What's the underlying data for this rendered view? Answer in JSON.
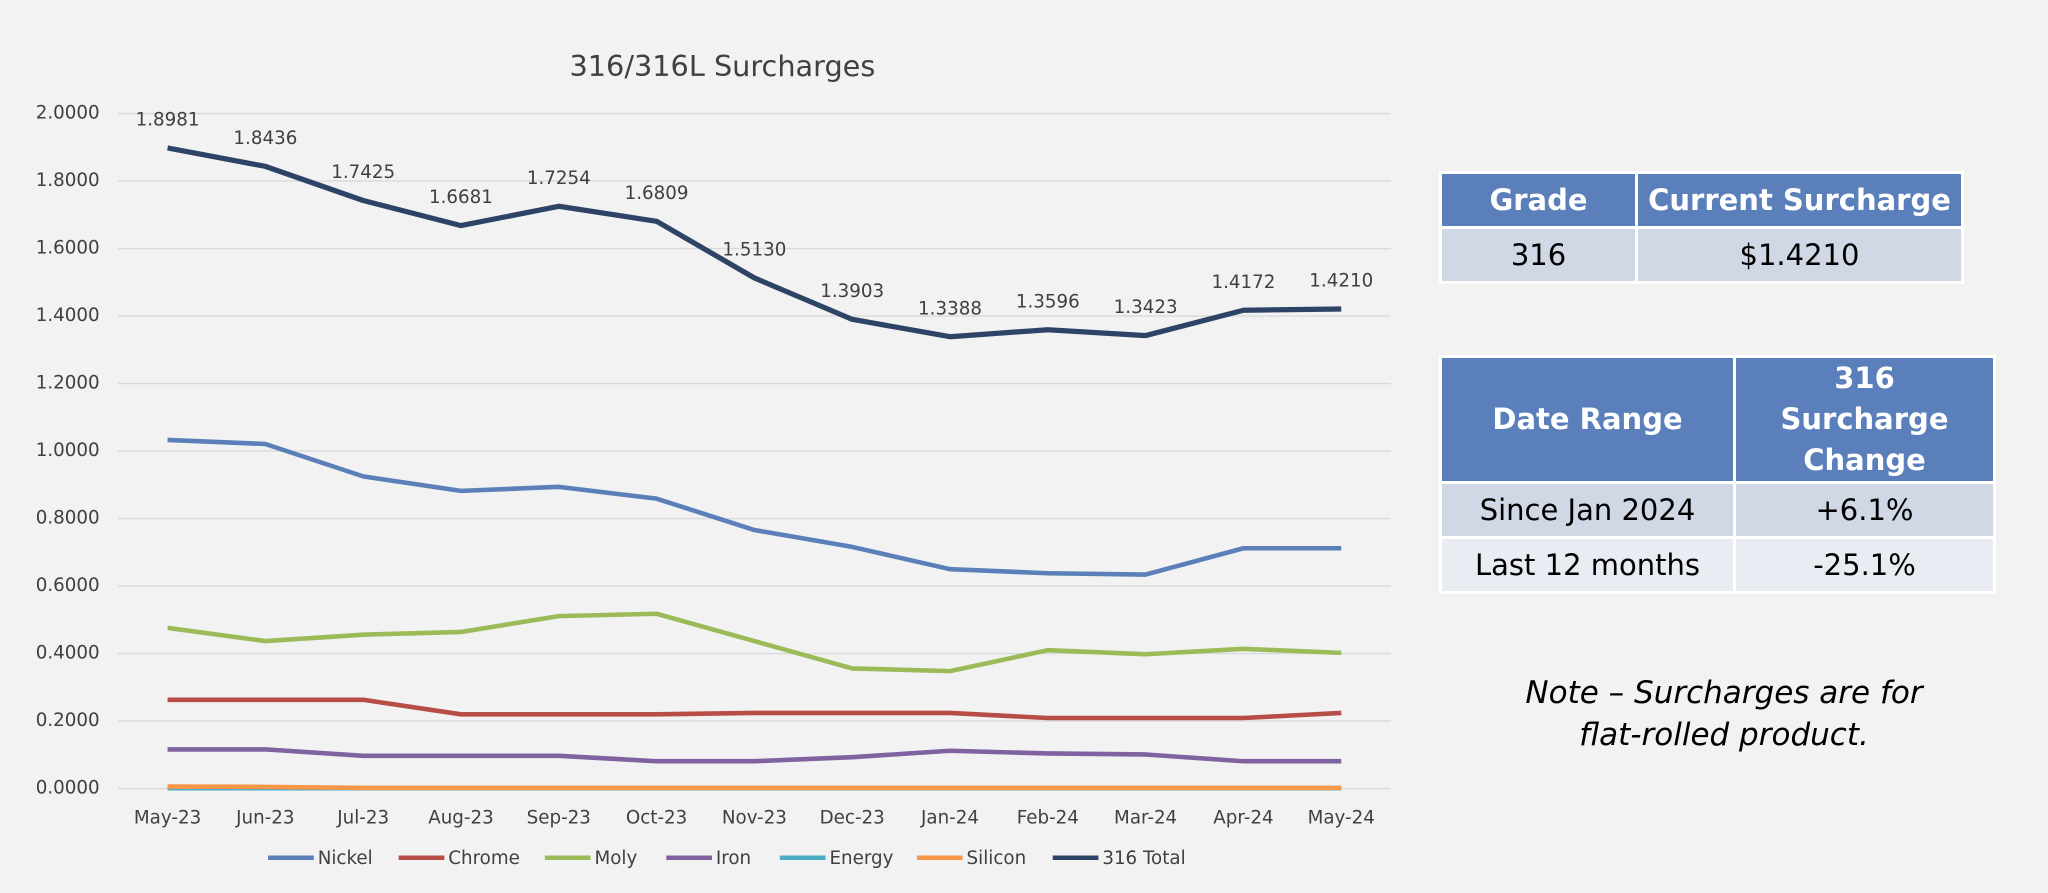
{
  "chart_data": {
    "type": "line",
    "title": "316/316L Surcharges",
    "categories": [
      "May-23",
      "Jun-23",
      "Jul-23",
      "Aug-23",
      "Sep-23",
      "Oct-23",
      "Nov-23",
      "Dec-23",
      "Jan-24",
      "Feb-24",
      "Mar-24",
      "Apr-24",
      "May-24"
    ],
    "series": [
      {
        "name": "Nickel",
        "color": "#5b80b9",
        "values": [
          1.033,
          1.021,
          0.925,
          0.882,
          0.894,
          0.859,
          0.766,
          0.716,
          0.65,
          0.638,
          0.634,
          0.712,
          0.712
        ]
      },
      {
        "name": "Chrome",
        "color": "#b84d48",
        "values": [
          0.263,
          0.263,
          0.263,
          0.22,
          0.22,
          0.22,
          0.224,
          0.224,
          0.224,
          0.209,
          0.209,
          0.209,
          0.224
        ]
      },
      {
        "name": "Moly",
        "color": "#9bbb59",
        "values": [
          0.476,
          0.437,
          0.456,
          0.464,
          0.511,
          0.518,
          0.437,
          0.356,
          0.348,
          0.41,
          0.398,
          0.414,
          0.402
        ]
      },
      {
        "name": "Iron",
        "color": "#7f62a0",
        "values": [
          0.116,
          0.116,
          0.097,
          0.097,
          0.097,
          0.081,
          0.081,
          0.093,
          0.112,
          0.104,
          0.101,
          0.081,
          0.081
        ]
      },
      {
        "name": "Energy",
        "color": "#4bacc6",
        "values": [
          0.001,
          0.001,
          0.001,
          0.001,
          0.001,
          0.001,
          0.001,
          0.001,
          0.001,
          0.001,
          0.001,
          0.001,
          0.001
        ]
      },
      {
        "name": "Silicon",
        "color": "#f79646",
        "values": [
          0.006,
          0.005,
          0.002,
          0.002,
          0.002,
          0.002,
          0.002,
          0.002,
          0.002,
          0.002,
          0.002,
          0.002,
          0.002
        ]
      },
      {
        "name": "316 Total",
        "color": "#2e4466",
        "values": [
          1.8981,
          1.8436,
          1.7425,
          1.6681,
          1.7254,
          1.6809,
          1.513,
          1.3903,
          1.3388,
          1.3596,
          1.3423,
          1.4172,
          1.421
        ],
        "value_labels": [
          "1.8981",
          "1.8436",
          "1.7425",
          "1.6681",
          "1.7254",
          "1.6809",
          "1.5130",
          "1.3903",
          "1.3388",
          "1.3596",
          "1.3423",
          "1.4172",
          "1.4210"
        ]
      }
    ],
    "ylim": [
      0,
      2
    ],
    "yticks": [
      {
        "value": 0,
        "label": "0.0000"
      },
      {
        "value": 0.2,
        "label": "0.2000"
      },
      {
        "value": 0.4,
        "label": "0.4000"
      },
      {
        "value": 0.6,
        "label": "0.6000"
      },
      {
        "value": 0.8,
        "label": "0.8000"
      },
      {
        "value": 1,
        "label": "1.0000"
      },
      {
        "value": 1.2,
        "label": "1.2000"
      },
      {
        "value": 1.4,
        "label": "1.4000"
      },
      {
        "value": 1.6,
        "label": "1.6000"
      },
      {
        "value": 1.8,
        "label": "1.8000"
      },
      {
        "value": 2,
        "label": "2.0000"
      }
    ],
    "grid": true,
    "legend": "bottom"
  },
  "tables": [
    {
      "header": [
        "Grade",
        "Current Surcharge"
      ],
      "rows": [
        [
          "316",
          "$1.4210"
        ]
      ]
    },
    {
      "header": [
        "Date Range",
        "316 Surcharge Change"
      ],
      "rows": [
        [
          "Since Jan 2024",
          "+6.1%"
        ],
        [
          "Last 12 months",
          "-25.1%"
        ]
      ]
    }
  ],
  "note": [
    "Note – Surcharges are for",
    "flat-rolled product."
  ]
}
